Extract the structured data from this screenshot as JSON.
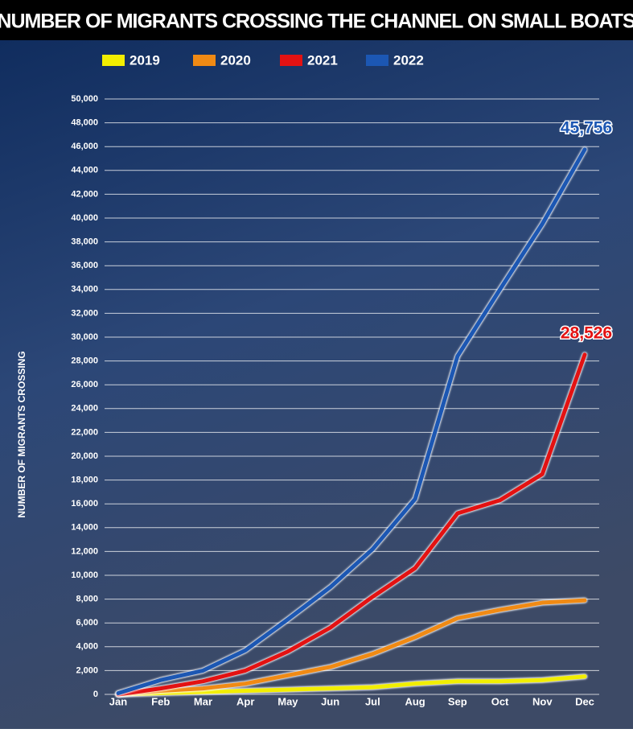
{
  "chart_data": {
    "type": "line",
    "title": "NUMBER OF MIGRANTS CROSSING THE CHANNEL ON SMALL BOATS",
    "y_label": "NUMBER OF MIGRANTS CROSSING",
    "categories": [
      "Jan",
      "Feb",
      "Mar",
      "Apr",
      "May",
      "Jun",
      "Jul",
      "Aug",
      "Sep",
      "Oct",
      "Nov",
      "Dec"
    ],
    "series": [
      {
        "name": "2019",
        "color": "#f2ee00",
        "values": [
          0,
          100,
          200,
          300,
          400,
          500,
          600,
          900,
          1100,
          1100,
          1200,
          1500
        ]
      },
      {
        "name": "2020",
        "color": "#f08a14",
        "values": [
          0,
          300,
          500,
          900,
          1600,
          2300,
          3400,
          4800,
          6400,
          7100,
          7700,
          7900
        ]
      },
      {
        "name": "2021",
        "color": "#e31212",
        "values": [
          0,
          500,
          1100,
          2000,
          3600,
          5600,
          8200,
          10600,
          15200,
          16300,
          18500,
          28526
        ],
        "value_labels": [
          null,
          null,
          null,
          null,
          null,
          null,
          null,
          null,
          null,
          null,
          null,
          "28,526"
        ]
      },
      {
        "name": "2022",
        "color": "#1c57b3",
        "values": [
          100,
          1200,
          2000,
          3700,
          6300,
          9000,
          12200,
          16400,
          28400,
          34000,
          39500,
          45756
        ],
        "value_labels": [
          null,
          null,
          null,
          null,
          null,
          null,
          null,
          null,
          null,
          null,
          null,
          "45,756"
        ]
      }
    ],
    "ylim": [
      0,
      50000
    ],
    "yticks": [
      0,
      {
        "value": 2000,
        "label": "2,000"
      },
      {
        "value": 4000,
        "label": "4,000"
      },
      {
        "value": 6000,
        "label": "6,000"
      },
      {
        "value": 8000,
        "label": "8,000"
      },
      {
        "value": 10000,
        "label": "10,000"
      },
      {
        "value": 12000,
        "label": "12,000"
      },
      {
        "value": 14000,
        "label": "14,000"
      },
      {
        "value": 16000,
        "label": "16,000"
      },
      {
        "value": 18000,
        "label": "18,000"
      },
      {
        "value": 20000,
        "label": "20,000"
      },
      {
        "value": 22000,
        "label": "22,000"
      },
      {
        "value": 24000,
        "label": "24,000"
      },
      {
        "value": 26000,
        "label": "26,000"
      },
      {
        "value": 28000,
        "label": "28,000"
      },
      {
        "value": 30000,
        "label": "30,000"
      },
      {
        "value": 32000,
        "label": "32,000"
      },
      {
        "value": 34000,
        "label": "34,000"
      },
      {
        "value": 36000,
        "label": "36,000"
      },
      {
        "value": 38000,
        "label": "38,000"
      },
      {
        "value": 40000,
        "label": "40,000"
      },
      {
        "value": 42000,
        "label": "42,000"
      },
      {
        "value": 44000,
        "label": "44,000"
      },
      {
        "value": 46000,
        "label": "46,000"
      },
      {
        "value": 48000,
        "label": "48,000"
      },
      {
        "value": 50000,
        "label": "50,000"
      }
    ],
    "grid": true,
    "legend": "top"
  }
}
